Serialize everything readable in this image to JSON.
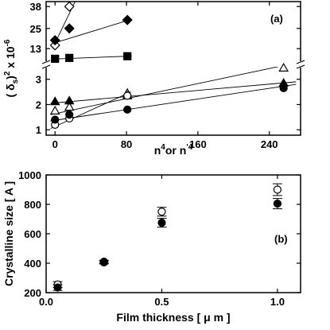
{
  "chart_data": [
    {
      "type": "scatter",
      "panel_label": "(a)",
      "xlabel_main": "n",
      "xlabel_sup1": "4",
      "xlabel_mid": "or n",
      "xlabel_sup2": "'4",
      "ylabel_main": "( δ",
      "ylabel_sub": "s",
      "ylabel_rest": ")",
      "ylabel_sup1": "2",
      "ylabel_times": " x 10",
      "ylabel_sup2": "-6",
      "xticks": [
        "0",
        "80",
        "160",
        "240"
      ],
      "xtick_values": [
        0,
        80,
        160,
        240
      ],
      "xlim": [
        -10,
        275
      ],
      "axis_break": "y",
      "upper": {
        "ylim": [
          6,
          40
        ],
        "yticks": [
          "13",
          "25",
          "38"
        ],
        "ytick_values": [
          13,
          25,
          38
        ],
        "series": [
          {
            "marker": "open-diamond",
            "x": [
              0,
              16
            ],
            "y": [
              15,
              38
            ]
          },
          {
            "marker": "filled-diamond",
            "x": [
              0,
              16,
              81
            ],
            "y": [
              18,
              25,
              30
            ]
          },
          {
            "marker": "filled-square",
            "x": [
              0,
              16,
              81
            ],
            "y": [
              7,
              7.5,
              8.5
            ]
          }
        ],
        "fits": [
          {
            "x": [
              -3,
              27
            ],
            "y": [
              13,
              46
            ]
          },
          {
            "x": [
              -3,
              86
            ],
            "y": [
              16,
              30.5
            ]
          },
          {
            "x": [
              -3,
              86
            ],
            "y": [
              6.8,
              8.6
            ]
          }
        ]
      },
      "lower": {
        "ylim": [
          0.85,
          3.4
        ],
        "yticks": [
          "1",
          "2",
          "3"
        ],
        "ytick_values": [
          1,
          2,
          3
        ],
        "series": [
          {
            "marker": "open-triangle",
            "x": [
              0,
              16,
              81,
              256
            ],
            "y": [
              1.75,
              1.9,
              2.45,
              3.45
            ]
          },
          {
            "marker": "filled-triangle",
            "x": [
              0,
              16,
              81,
              256
            ],
            "y": [
              2.12,
              2.15,
              2.35,
              2.85
            ]
          },
          {
            "marker": "open-circle",
            "x": [
              0,
              16,
              81
            ],
            "y": [
              1.2,
              1.45,
              2.35
            ]
          },
          {
            "marker": "filled-circle",
            "x": [
              0,
              16,
              81,
              256
            ],
            "y": [
              1.4,
              1.6,
              1.8,
              2.65
            ]
          }
        ],
        "fits": [
          {
            "x": [
              -5,
              270
            ],
            "y": [
              1.6,
              3.65
            ]
          },
          {
            "x": [
              -5,
              270
            ],
            "y": [
              2.05,
              2.9
            ]
          },
          {
            "x": [
              -5,
              270
            ],
            "y": [
              1.35,
              2.8
            ]
          },
          {
            "x": [
              -5,
              85
            ],
            "y": [
              1.05,
              2.5
            ]
          }
        ]
      }
    },
    {
      "type": "scatter",
      "panel_label": "(b)",
      "xlabel": "Film thickness [ μ m ]",
      "ylabel": "Crystalline size [ A ]",
      "xlim": [
        0,
        1.1
      ],
      "ylim": [
        200,
        1000
      ],
      "xticks": [
        "0.0",
        "0.5",
        "1.0"
      ],
      "xtick_values": [
        0,
        0.5,
        1.0
      ],
      "yticks": [
        "200",
        "400",
        "600",
        "800",
        "1000"
      ],
      "ytick_values": [
        200,
        400,
        600,
        800,
        1000
      ],
      "series": [
        {
          "marker": "open-circle",
          "x": [
            0.05,
            0.25,
            0.5,
            1.0
          ],
          "y": [
            255,
            405,
            750,
            900
          ],
          "err": [
            20,
            10,
            30,
            40
          ]
        },
        {
          "marker": "filled-circle",
          "x": [
            0.05,
            0.25,
            0.5,
            1.0
          ],
          "y": [
            235,
            410,
            675,
            805
          ],
          "err": [
            20,
            10,
            30,
            35
          ]
        }
      ]
    }
  ]
}
